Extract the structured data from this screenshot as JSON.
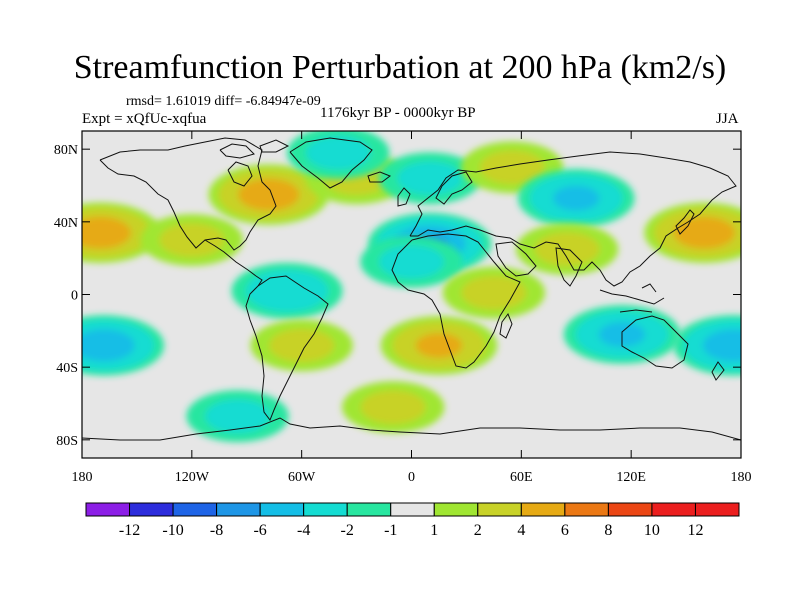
{
  "chart_data": {
    "type": "heatmap",
    "title": "Streamfunction Perturbation at 200 hPa (km2/s)",
    "stats_label": "rmsd= 1.61019  diff= -6.84947e-09",
    "expt_label": "Expt = xQfUc-xqfua",
    "period_label": "1176kyr BP - 0000kyr BP",
    "season_label": "JJA",
    "x_ticks": [
      {
        "value": -180,
        "label": "180"
      },
      {
        "value": -120,
        "label": "120W"
      },
      {
        "value": -60,
        "label": "60W"
      },
      {
        "value": 0,
        "label": "0"
      },
      {
        "value": 60,
        "label": "60E"
      },
      {
        "value": 120,
        "label": "120E"
      },
      {
        "value": 180,
        "label": "180"
      }
    ],
    "y_ticks": [
      {
        "value": 80,
        "label": "80N"
      },
      {
        "value": 40,
        "label": "40N"
      },
      {
        "value": 0,
        "label": "0"
      },
      {
        "value": -40,
        "label": "40S"
      },
      {
        "value": -80,
        "label": "80S"
      }
    ],
    "xlim": [
      -180,
      180
    ],
    "ylim": [
      -90,
      90
    ],
    "colorbar": {
      "labels": [
        "-12",
        "-10",
        "-8",
        "-6",
        "-4",
        "-2",
        "-1",
        "1",
        "2",
        "4",
        "6",
        "8",
        "10",
        "12"
      ],
      "colors": [
        "#8c1ee6",
        "#2d2ddc",
        "#1e64e6",
        "#1e96e6",
        "#14bee6",
        "#14dcd2",
        "#28e6a0",
        "#e6e6e6",
        "#a0e632",
        "#c8d228",
        "#e6aa14",
        "#eb7814",
        "#eb4614",
        "#eb1e1e",
        "#eb1e1e"
      ]
    },
    "anomalies": [
      {
        "lon": -78,
        "lat": 55,
        "value": 5,
        "desc": "positive over North America"
      },
      {
        "lon": -30,
        "lat": 64,
        "value": 2,
        "desc": "positive over Greenland"
      },
      {
        "lon": 10,
        "lat": 64,
        "value": -2,
        "desc": "negative over northern Europe"
      },
      {
        "lon": 55,
        "lat": 70,
        "value": 2,
        "desc": "positive over Scandinavia / Arctic"
      },
      {
        "lon": -40,
        "lat": 78,
        "value": -2,
        "desc": "negative polar cap"
      },
      {
        "lon": 90,
        "lat": 53,
        "value": -4,
        "desc": "negative over central Asia"
      },
      {
        "lon": -170,
        "lat": 34,
        "value": 5,
        "desc": "positive central Pacific"
      },
      {
        "lon": 160,
        "lat": 34,
        "value": 5,
        "desc": "positive western Pacific"
      },
      {
        "lon": 10,
        "lat": 28,
        "value": -6,
        "desc": "negative over Sahara"
      },
      {
        "lon": -120,
        "lat": 30,
        "value": 2,
        "desc": "positive eastern Pacific"
      },
      {
        "lon": -68,
        "lat": 2,
        "value": -3,
        "desc": "negative northern South America"
      },
      {
        "lon": 0,
        "lat": 18,
        "value": -2,
        "desc": "negative tropical Atlantic"
      },
      {
        "lon": 85,
        "lat": 25,
        "value": 2,
        "desc": "positive South Asia"
      },
      {
        "lon": 45,
        "lat": 1,
        "value": 2,
        "desc": "positive equatorial Indian Ocean"
      },
      {
        "lon": -168,
        "lat": -28,
        "value": -5,
        "desc": "negative South Pacific west"
      },
      {
        "lon": 176,
        "lat": -28,
        "value": -5,
        "desc": "negative South Pacific"
      },
      {
        "lon": 115,
        "lat": -22,
        "value": -4,
        "desc": "negative over Australia"
      },
      {
        "lon": 15,
        "lat": -28,
        "value": 4,
        "desc": "positive southern Africa"
      },
      {
        "lon": -60,
        "lat": -28,
        "value": 2,
        "desc": "positive South America"
      },
      {
        "lon": -95,
        "lat": -67,
        "value": -2,
        "desc": "negative Southern Ocean"
      },
      {
        "lon": -10,
        "lat": -62,
        "value": 2,
        "desc": "positive South Atlantic"
      }
    ]
  }
}
